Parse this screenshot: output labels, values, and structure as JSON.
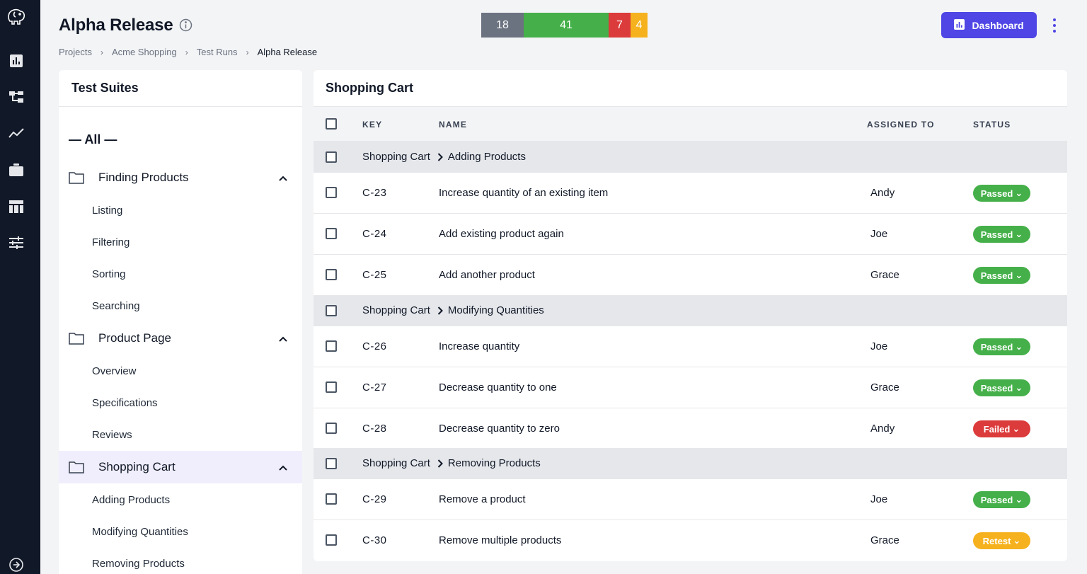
{
  "header": {
    "title": "Alpha Release",
    "breadcrumb": [
      "Projects",
      "Acme Shopping",
      "Test Runs",
      "Alpha Release"
    ],
    "dashboard_label": "Dashboard"
  },
  "stats": [
    {
      "value": "18",
      "color": "#6b7280"
    },
    {
      "value": "41",
      "color": "#45b04a"
    },
    {
      "value": "7",
      "color": "#dc3b3b"
    },
    {
      "value": "4",
      "color": "#f6b21e"
    }
  ],
  "sidebar": {
    "title": "Test Suites",
    "all_label": "— All —",
    "folders": [
      {
        "label": "Finding Products",
        "children": [
          "Listing",
          "Filtering",
          "Sorting",
          "Searching"
        ]
      },
      {
        "label": "Product Page",
        "children": [
          "Overview",
          "Specifications",
          "Reviews"
        ]
      },
      {
        "label": "Shopping Cart",
        "children": [
          "Adding Products",
          "Modifying Quantities",
          "Removing Products"
        ],
        "active": true
      }
    ]
  },
  "main": {
    "title": "Shopping Cart",
    "columns": {
      "key": "KEY",
      "name": "NAME",
      "assigned": "ASSIGNED TO",
      "status": "STATUS"
    },
    "groups": [
      {
        "parent": "Shopping Cart",
        "name": "Adding Products",
        "rows": [
          {
            "key": "C-23",
            "name": "Increase quantity of an existing item",
            "assigned": "Andy",
            "status": "Passed"
          },
          {
            "key": "C-24",
            "name": "Add existing product again",
            "assigned": "Joe",
            "status": "Passed"
          },
          {
            "key": "C-25",
            "name": "Add another product",
            "assigned": "Grace",
            "status": "Passed"
          }
        ]
      },
      {
        "parent": "Shopping Cart",
        "name": "Modifying Quantities",
        "rows": [
          {
            "key": "C-26",
            "name": "Increase quantity",
            "assigned": "Joe",
            "status": "Passed"
          },
          {
            "key": "C-27",
            "name": "Decrease quantity to one",
            "assigned": "Grace",
            "status": "Passed"
          },
          {
            "key": "C-28",
            "name": "Decrease quantity to zero",
            "assigned": "Andy",
            "status": "Failed"
          }
        ]
      },
      {
        "parent": "Shopping Cart",
        "name": "Removing Products",
        "rows": [
          {
            "key": "C-29",
            "name": "Remove a product",
            "assigned": "Joe",
            "status": "Passed"
          },
          {
            "key": "C-30",
            "name": "Remove multiple products",
            "assigned": "Grace",
            "status": "Retest"
          }
        ]
      }
    ]
  },
  "status_colors": {
    "Passed": "#45b04a",
    "Failed": "#dc3b3b",
    "Retest": "#f6b21e"
  },
  "icons": {
    "rail": [
      "elephant-logo-icon",
      "bar-chart-icon",
      "hierarchy-icon",
      "trend-line-icon",
      "briefcase-icon",
      "table-icon",
      "sliders-icon",
      "expand-circle-icon"
    ],
    "title": "info-icon",
    "dashboard": "chart-icon",
    "menu": "kebab-icon",
    "folder": "folder-icon",
    "collapse": "chevron-up-icon",
    "crumb_separator": "chevron-right-icon",
    "status_toggle": "chevron-down-icon"
  }
}
